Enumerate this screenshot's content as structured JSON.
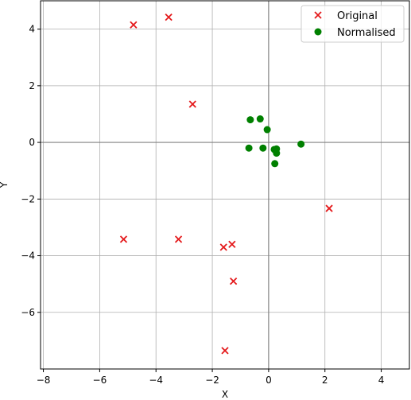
{
  "chart_data": {
    "type": "scatter",
    "title": "",
    "xlabel": "X",
    "ylabel": "Y",
    "xlim": [
      -8.1,
      5.0
    ],
    "ylim": [
      -8.0,
      5.0
    ],
    "xticks": [
      -8,
      -6,
      -4,
      -2,
      0,
      2,
      4
    ],
    "yticks": [
      -6,
      -4,
      -2,
      0,
      2,
      4
    ],
    "xtick_labels": [
      "−8",
      "−6",
      "−4",
      "−2",
      "0",
      "2",
      "4"
    ],
    "ytick_labels": [
      "−6",
      "−4",
      "−2",
      "0",
      "2",
      "4"
    ],
    "grid": true,
    "zero_lines": true,
    "legend_position": "top-right",
    "series": [
      {
        "name": "Original",
        "marker": "x",
        "color": "#e41a1c",
        "points": [
          [
            -4.8,
            4.15
          ],
          [
            -3.55,
            4.42
          ],
          [
            -2.7,
            1.35
          ],
          [
            2.15,
            -2.33
          ],
          [
            -5.15,
            -3.42
          ],
          [
            -3.2,
            -3.42
          ],
          [
            -1.3,
            -3.6
          ],
          [
            -1.6,
            -3.7
          ],
          [
            -1.25,
            -4.9
          ],
          [
            -1.55,
            -7.35
          ]
        ]
      },
      {
        "name": "Normalised",
        "marker": "o",
        "color": "#008000",
        "points": [
          [
            -0.65,
            0.8
          ],
          [
            -0.3,
            0.83
          ],
          [
            -0.05,
            0.45
          ],
          [
            1.15,
            -0.06
          ],
          [
            -0.7,
            -0.2
          ],
          [
            -0.2,
            -0.2
          ],
          [
            0.2,
            -0.25
          ],
          [
            0.28,
            -0.23
          ],
          [
            0.28,
            -0.38
          ],
          [
            0.22,
            -0.75
          ]
        ]
      }
    ]
  }
}
